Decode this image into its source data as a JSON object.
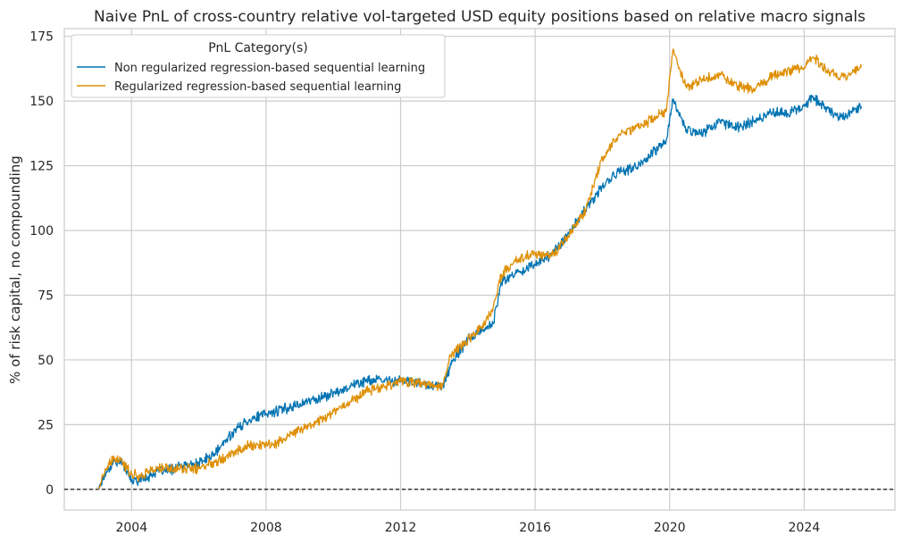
{
  "chart_data": {
    "type": "line",
    "title": "Naive PnL of cross-country relative vol-targeted USD equity positions based on relative macro signals",
    "xlabel": "",
    "ylabel": "% of risk capital, no compounding",
    "xlim": [
      2002.0,
      2026.7
    ],
    "ylim": [
      -8,
      178
    ],
    "x_ticks": [
      2004,
      2008,
      2012,
      2016,
      2020,
      2024
    ],
    "x_tick_labels": [
      "2004",
      "2008",
      "2012",
      "2016",
      "2020",
      "2024"
    ],
    "y_ticks": [
      0,
      25,
      50,
      75,
      100,
      125,
      150,
      175
    ],
    "y_tick_labels": [
      "0",
      "25",
      "50",
      "75",
      "100",
      "125",
      "150",
      "175"
    ],
    "grid": true,
    "zero_line": "dashed black at y = 0",
    "legend": {
      "title": "PnL Category(s)",
      "placement": "upper-left"
    },
    "x": [
      2003.0,
      2003.25,
      2003.5,
      2003.75,
      2004.0,
      2004.25,
      2004.5,
      2004.75,
      2005.0,
      2005.5,
      2006.0,
      2006.5,
      2007.0,
      2007.5,
      2008.0,
      2008.5,
      2009.0,
      2009.5,
      2010.0,
      2010.5,
      2011.0,
      2011.5,
      2012.0,
      2012.5,
      2013.0,
      2013.25,
      2013.5,
      2014.0,
      2014.5,
      2014.75,
      2015.0,
      2015.5,
      2016.0,
      2016.5,
      2017.0,
      2017.5,
      2018.0,
      2018.5,
      2019.0,
      2019.5,
      2019.9,
      2020.1,
      2020.25,
      2020.5,
      2021.0,
      2021.5,
      2022.0,
      2022.5,
      2023.0,
      2023.5,
      2024.0,
      2024.25,
      2024.5,
      2025.0,
      2025.3,
      2025.7
    ],
    "series": [
      {
        "name": "Non regularized regression-based sequential learning",
        "color": "#0173b2",
        "values": [
          0,
          7,
          11,
          10,
          3,
          4,
          5,
          7,
          7,
          9,
          10,
          14,
          22,
          27,
          29,
          31,
          33,
          35,
          37,
          40,
          42,
          42,
          42,
          41,
          40,
          40,
          48,
          58,
          62,
          64,
          80,
          84,
          87,
          91,
          99,
          108,
          117,
          123,
          124,
          130,
          135,
          150,
          146,
          139,
          138,
          142,
          140,
          142,
          146,
          145,
          148,
          152,
          149,
          144,
          145,
          148
        ]
      },
      {
        "name": "Regularized regression-based sequential learning",
        "color": "#de8f05",
        "values": [
          0,
          8,
          12,
          10,
          6,
          5,
          7,
          8,
          8,
          8,
          8,
          11,
          14,
          17,
          17,
          19,
          23,
          26,
          30,
          34,
          38,
          40,
          42,
          41,
          40,
          40,
          52,
          58,
          64,
          70,
          83,
          89,
          91,
          90,
          98,
          108,
          128,
          137,
          140,
          143,
          146,
          170,
          164,
          155,
          158,
          160,
          156,
          155,
          159,
          162,
          163,
          167,
          164,
          159,
          160,
          163
        ]
      }
    ]
  }
}
